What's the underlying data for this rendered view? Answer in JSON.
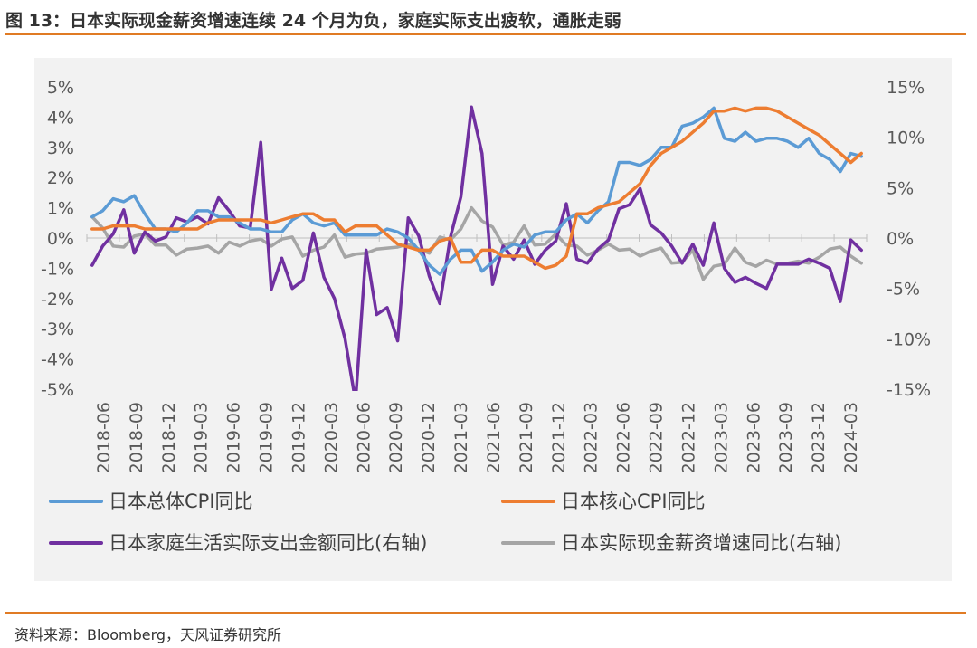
{
  "header": {
    "title": "图 13：日本实际现金薪资增速连续 24 个月为负，家庭实际支出疲软，通胀走弱"
  },
  "footer": {
    "source": "资料来源：Bloomberg，天风证券研究所"
  },
  "chart_data": {
    "type": "line",
    "x_ticks": [
      "2018-06",
      "2018-09",
      "2018-12",
      "2019-03",
      "2019-06",
      "2019-09",
      "2019-12",
      "2020-03",
      "2020-06",
      "2020-09",
      "2020-12",
      "2021-03",
      "2021-06",
      "2021-09",
      "2021-12",
      "2022-03",
      "2022-06",
      "2022-09",
      "2022-12",
      "2023-03",
      "2023-06",
      "2023-09",
      "2023-12",
      "2024-03"
    ],
    "x_start": "2018-06",
    "x_end": "2024-03",
    "y_left": {
      "ticks": [
        "5%",
        "4%",
        "3%",
        "2%",
        "1%",
        "0%",
        "-1%",
        "-2%",
        "-3%",
        "-4%",
        "-5%"
      ],
      "min": -5,
      "max": 5
    },
    "y_right": {
      "ticks": [
        "15%",
        "10%",
        "5%",
        "0%",
        "-5%",
        "-10%",
        "-15%"
      ],
      "min": -15,
      "max": 15
    },
    "grid": false,
    "legend_position": "bottom",
    "series": [
      {
        "name": "日本总体CPI同比",
        "axis": "left",
        "color": "#5b9bd5",
        "values": [
          0.7,
          0.9,
          1.3,
          1.2,
          1.4,
          0.8,
          0.3,
          0.3,
          0.2,
          0.5,
          0.9,
          0.9,
          0.7,
          0.7,
          0.5,
          0.3,
          0.3,
          0.2,
          0.2,
          0.6,
          0.8,
          0.5,
          0.4,
          0.5,
          0.1,
          0.1,
          0.1,
          0.1,
          0.3,
          0.2,
          0.0,
          -0.4,
          -0.9,
          -1.2,
          -0.7,
          -0.4,
          -0.4,
          -1.1,
          -0.8,
          -0.4,
          -0.2,
          -0.3,
          0.1,
          0.2,
          0.2,
          0.6,
          0.8,
          0.5,
          0.9,
          1.2,
          2.5,
          2.5,
          2.4,
          2.6,
          3.0,
          3.0,
          3.7,
          3.8,
          4.0,
          4.3,
          3.3,
          3.2,
          3.5,
          3.2,
          3.3,
          3.3,
          3.2,
          3.0,
          3.3,
          2.8,
          2.6,
          2.2,
          2.8,
          2.7
        ]
      },
      {
        "name": "日本核心CPI同比",
        "axis": "left",
        "color": "#ed7d31",
        "values": [
          0.3,
          0.3,
          0.4,
          0.4,
          0.4,
          0.3,
          0.3,
          0.3,
          0.3,
          0.3,
          0.3,
          0.5,
          0.6,
          0.6,
          0.6,
          0.6,
          0.6,
          0.5,
          0.6,
          0.7,
          0.8,
          0.8,
          0.6,
          0.6,
          0.2,
          0.4,
          0.4,
          0.4,
          0.1,
          -0.2,
          -0.3,
          -0.4,
          -0.4,
          -0.1,
          0.0,
          -0.8,
          -0.8,
          -0.4,
          -0.4,
          -0.6,
          -0.6,
          -0.6,
          -0.8,
          -1.0,
          -0.9,
          -0.6,
          0.8,
          0.8,
          1.0,
          1.1,
          1.2,
          1.5,
          1.8,
          2.4,
          2.8,
          3.0,
          3.2,
          3.5,
          3.8,
          4.2,
          4.2,
          4.3,
          4.2,
          4.3,
          4.3,
          4.2,
          4.0,
          3.8,
          3.6,
          3.4,
          3.1,
          2.8,
          2.5,
          2.8
        ]
      },
      {
        "name": "日本家庭生活实际支出金额同比(右轴)",
        "axis": "right",
        "color": "#7030a0",
        "values": [
          -2.7,
          -0.8,
          0.4,
          2.8,
          -1.5,
          0.6,
          -0.3,
          0.1,
          2.0,
          1.6,
          2.1,
          1.4,
          4.0,
          2.7,
          1.2,
          1.0,
          9.5,
          -5.1,
          -2.0,
          -5.0,
          -4.2,
          0.5,
          -3.9,
          -6.0,
          -10.0,
          -16.2,
          -1.2,
          -7.6,
          -6.9,
          -10.2,
          2.0,
          0.2,
          -3.8,
          -6.5,
          0.1,
          4.1,
          13.0,
          8.4,
          -4.6,
          -0.8,
          -2.1,
          -0.2,
          -2.6,
          -1.2,
          -0.3,
          3.4,
          -2.1,
          -2.5,
          -1.1,
          -0.2,
          2.9,
          3.3,
          4.9,
          1.3,
          0.5,
          -0.8,
          -2.5,
          -0.6,
          -2.7,
          1.5,
          -3.0,
          -4.4,
          -3.9,
          -4.5,
          -5.0,
          -2.6,
          -2.6,
          -2.6,
          -2.1,
          -2.5,
          -3.0,
          -6.3,
          -0.2,
          -1.2
        ]
      },
      {
        "name": "日本实际现金薪资增速同比(右轴)",
        "axis": "right",
        "color": "#a5a5a5",
        "values": [
          2.1,
          1.0,
          -0.8,
          -0.9,
          0.2,
          0.4,
          -0.7,
          -0.7,
          -1.7,
          -1.1,
          -1.0,
          -0.8,
          -1.5,
          -0.4,
          -0.8,
          -0.3,
          -0.1,
          -0.8,
          -0.1,
          0.1,
          -1.8,
          -1.2,
          -0.9,
          0.3,
          -1.9,
          -1.6,
          -1.5,
          -1.1,
          -1.0,
          -0.9,
          -0.6,
          -1.1,
          -1.5,
          0.1,
          -0.2,
          0.9,
          3.0,
          1.7,
          1.1,
          -0.7,
          -0.4,
          1.2,
          -0.7,
          -0.6,
          0.4,
          -0.7,
          -0.8,
          -1.7,
          -1.2,
          -0.6,
          -1.2,
          -1.1,
          -1.8,
          -1.3,
          -1.0,
          -2.5,
          -2.4,
          -1.2,
          -4.1,
          -2.8,
          -2.6,
          -1.0,
          -2.4,
          -2.8,
          -2.2,
          -2.6,
          -2.5,
          -2.3,
          -2.5,
          -1.9,
          -1.1,
          -0.9,
          -1.8,
          -2.5
        ]
      }
    ]
  }
}
